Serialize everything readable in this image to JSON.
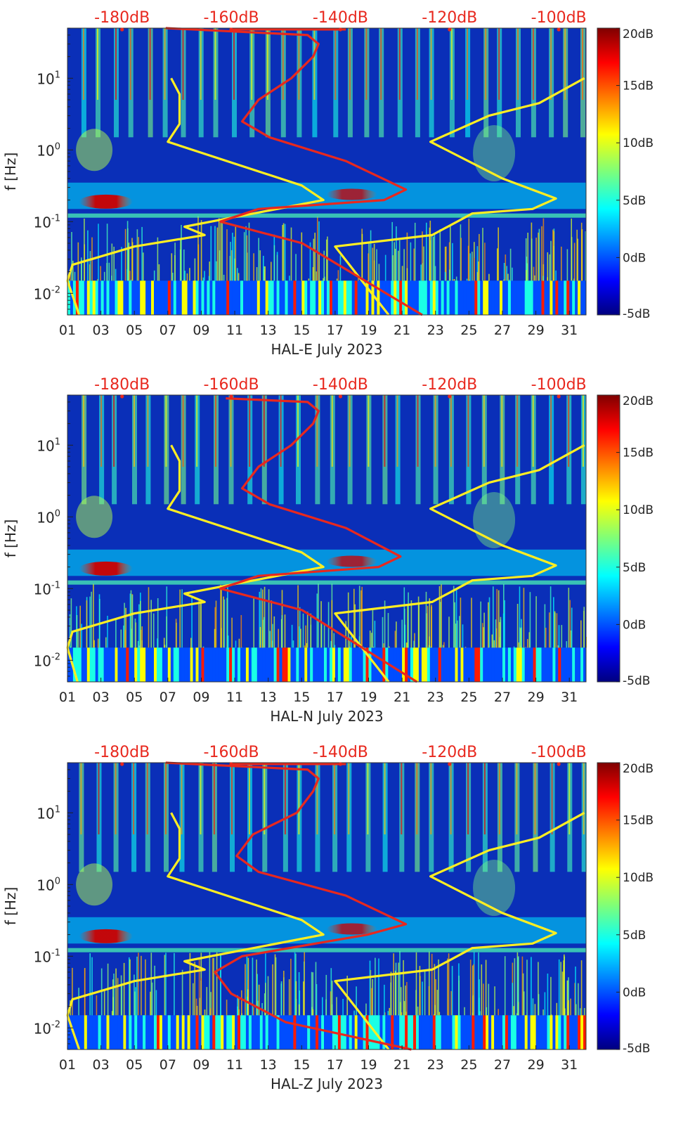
{
  "chart_data": [
    {
      "type": "heatmap",
      "xlabel": "HAL-E July 2023",
      "ylabel": "f [Hz]",
      "x_ticks": [
        "01",
        "03",
        "05",
        "07",
        "09",
        "11",
        "13",
        "15",
        "17",
        "19",
        "21",
        "23",
        "25",
        "27",
        "29",
        "31"
      ],
      "xlim": [
        1,
        32
      ],
      "ylim": [
        0.005,
        50
      ],
      "y_scale": "log",
      "y_ticks": [
        "10^-2",
        "10^-1",
        "10^0",
        "10^1"
      ],
      "colorbar": {
        "ticks": [
          "20dB",
          "15dB",
          "10dB",
          "5dB",
          "0dB",
          "-5dB"
        ],
        "range": [
          -5,
          20
        ],
        "colormap": "jet"
      },
      "top_axis": {
        "ticks": [
          "-180dB",
          "-160dB",
          "-140dB",
          "-120dB",
          "-100dB"
        ],
        "range": [
          -190,
          -95
        ],
        "color": "#e8281e"
      },
      "series": [
        {
          "color": "#ffee22",
          "axis": "bottom",
          "points": [
            [
              1.7,
              0.005
            ],
            [
              1.0,
              0.015
            ],
            [
              1.3,
              0.025
            ],
            [
              5.0,
              0.045
            ],
            [
              9.2,
              0.065
            ],
            [
              8.0,
              0.085
            ],
            [
              10.5,
              0.11
            ],
            [
              16.3,
              0.2
            ],
            [
              15.0,
              0.32
            ],
            [
              7.0,
              1.3
            ],
            [
              7.7,
              2.3
            ],
            [
              7.7,
              6
            ],
            [
              7.2,
              10
            ]
          ]
        },
        {
          "color": "#ffee22",
          "axis": "bottom",
          "points": [
            [
              20.2,
              0.005
            ],
            [
              17.0,
              0.045
            ],
            [
              22.8,
              0.065
            ],
            [
              25.2,
              0.13
            ],
            [
              28.8,
              0.15
            ],
            [
              30.2,
              0.21
            ],
            [
              27.0,
              0.4
            ],
            [
              22.7,
              1.3
            ],
            [
              26.2,
              3
            ],
            [
              29.2,
              4.5
            ],
            [
              31.9,
              10
            ]
          ]
        },
        {
          "color": "#e8281e",
          "axis": "top",
          "points": [
            [
              -125,
              0.005
            ],
            [
              -147,
              0.05
            ],
            [
              -162,
              0.1
            ],
            [
              -155,
              0.15
            ],
            [
              -132,
              0.2
            ],
            [
              -128,
              0.28
            ],
            [
              -139,
              0.7
            ],
            [
              -153,
              1.5
            ],
            [
              -158,
              2.5
            ],
            [
              -155,
              5
            ],
            [
              -149,
              10
            ],
            [
              -145,
              20
            ],
            [
              -144,
              30
            ],
            [
              -146,
              40
            ],
            [
              -172,
              50
            ]
          ]
        }
      ]
    },
    {
      "type": "heatmap",
      "xlabel": "HAL-N July 2023",
      "ylabel": "f [Hz]",
      "x_ticks": [
        "01",
        "03",
        "05",
        "07",
        "09",
        "11",
        "13",
        "15",
        "17",
        "19",
        "21",
        "23",
        "25",
        "27",
        "29",
        "31"
      ],
      "xlim": [
        1,
        32
      ],
      "ylim": [
        0.005,
        50
      ],
      "y_scale": "log",
      "y_ticks": [
        "10^-2",
        "10^-1",
        "10^0",
        "10^1"
      ],
      "colorbar": {
        "ticks": [
          "20dB",
          "15dB",
          "10dB",
          "5dB",
          "0dB",
          "-5dB"
        ],
        "range": [
          -5,
          20
        ],
        "colormap": "jet"
      },
      "top_axis": {
        "ticks": [
          "-180dB",
          "-160dB",
          "-140dB",
          "-120dB",
          "-100dB"
        ],
        "range": [
          -190,
          -95
        ],
        "color": "#e8281e"
      },
      "series": [
        {
          "color": "#ffee22",
          "axis": "bottom",
          "points": [
            [
              1.6,
              0.005
            ],
            [
              1.0,
              0.015
            ],
            [
              1.3,
              0.025
            ],
            [
              5.0,
              0.045
            ],
            [
              9.2,
              0.065
            ],
            [
              8.0,
              0.085
            ],
            [
              10.5,
              0.11
            ],
            [
              16.3,
              0.2
            ],
            [
              15.0,
              0.32
            ],
            [
              7.0,
              1.3
            ],
            [
              7.7,
              2.3
            ],
            [
              7.7,
              6
            ],
            [
              7.2,
              10
            ]
          ]
        },
        {
          "color": "#ffee22",
          "axis": "bottom",
          "points": [
            [
              20.2,
              0.005
            ],
            [
              17.0,
              0.045
            ],
            [
              22.8,
              0.065
            ],
            [
              25.2,
              0.13
            ],
            [
              28.8,
              0.15
            ],
            [
              30.2,
              0.21
            ],
            [
              27.0,
              0.4
            ],
            [
              22.7,
              1.3
            ],
            [
              26.2,
              3
            ],
            [
              29.2,
              4.5
            ],
            [
              31.9,
              10
            ]
          ]
        },
        {
          "color": "#e8281e",
          "axis": "top",
          "points": [
            [
              -126,
              0.005
            ],
            [
              -147,
              0.05
            ],
            [
              -162,
              0.1
            ],
            [
              -155,
              0.15
            ],
            [
              -133,
              0.2
            ],
            [
              -129,
              0.28
            ],
            [
              -139,
              0.7
            ],
            [
              -153,
              1.5
            ],
            [
              -158,
              2.5
            ],
            [
              -155,
              5
            ],
            [
              -149,
              10
            ],
            [
              -145,
              20
            ],
            [
              -144,
              30
            ],
            [
              -146,
              40
            ],
            [
              -161,
              45
            ]
          ]
        }
      ]
    },
    {
      "type": "heatmap",
      "xlabel": "HAL-Z July 2023",
      "ylabel": "f [Hz]",
      "x_ticks": [
        "01",
        "03",
        "05",
        "07",
        "09",
        "11",
        "13",
        "15",
        "17",
        "19",
        "21",
        "23",
        "25",
        "27",
        "29",
        "31"
      ],
      "xlim": [
        1,
        32
      ],
      "ylim": [
        0.005,
        50
      ],
      "y_scale": "log",
      "y_ticks": [
        "10^-2",
        "10^-1",
        "10^0",
        "10^1"
      ],
      "colorbar": {
        "ticks": [
          "20dB",
          "15dB",
          "10dB",
          "5dB",
          "0dB",
          "-5dB"
        ],
        "range": [
          -5,
          20
        ],
        "colormap": "jet"
      },
      "top_axis": {
        "ticks": [
          "-180dB",
          "-160dB",
          "-140dB",
          "-120dB",
          "-100dB"
        ],
        "range": [
          -190,
          -95
        ],
        "color": "#e8281e"
      },
      "series": [
        {
          "color": "#ffee22",
          "axis": "bottom",
          "points": [
            [
              1.7,
              0.005
            ],
            [
              1.0,
              0.015
            ],
            [
              1.3,
              0.025
            ],
            [
              5.0,
              0.045
            ],
            [
              9.2,
              0.065
            ],
            [
              8.0,
              0.085
            ],
            [
              10.5,
              0.11
            ],
            [
              16.3,
              0.2
            ],
            [
              15.0,
              0.32
            ],
            [
              7.0,
              1.3
            ],
            [
              7.7,
              2.3
            ],
            [
              7.7,
              6
            ],
            [
              7.2,
              10
            ]
          ]
        },
        {
          "color": "#ffee22",
          "axis": "bottom",
          "points": [
            [
              20.2,
              0.005
            ],
            [
              17.0,
              0.045
            ],
            [
              22.8,
              0.065
            ],
            [
              25.2,
              0.13
            ],
            [
              28.8,
              0.15
            ],
            [
              30.2,
              0.21
            ],
            [
              27.0,
              0.4
            ],
            [
              22.7,
              1.3
            ],
            [
              26.2,
              3
            ],
            [
              29.2,
              4.5
            ],
            [
              31.9,
              10
            ]
          ]
        },
        {
          "color": "#e8281e",
          "axis": "top",
          "points": [
            [
              -127,
              0.005
            ],
            [
              -150,
              0.012
            ],
            [
              -160,
              0.03
            ],
            [
              -163,
              0.06
            ],
            [
              -158,
              0.1
            ],
            [
              -135,
              0.2
            ],
            [
              -128,
              0.28
            ],
            [
              -139,
              0.7
            ],
            [
              -155,
              1.5
            ],
            [
              -159,
              2.5
            ],
            [
              -156,
              5
            ],
            [
              -148,
              10
            ],
            [
              -145,
              20
            ],
            [
              -144,
              30
            ],
            [
              -146,
              40
            ],
            [
              -172,
              50
            ]
          ]
        }
      ]
    }
  ]
}
